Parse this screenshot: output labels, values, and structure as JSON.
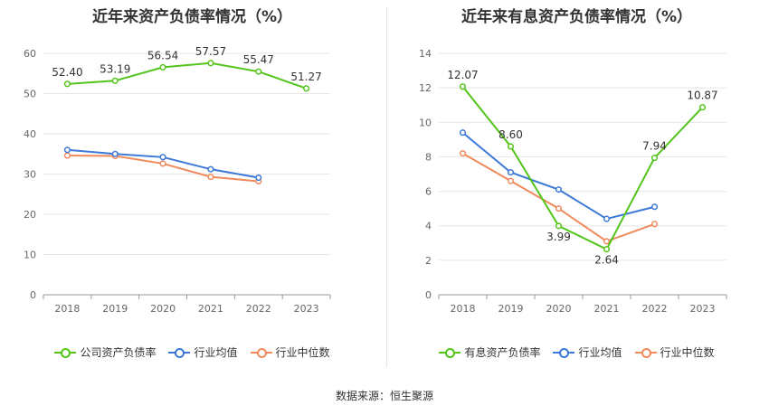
{
  "footer": {
    "source": "数据来源：恒生聚源"
  },
  "chart_data": [
    {
      "type": "line",
      "title": "近年来资产负债率情况（%）",
      "categories": [
        "2018",
        "2019",
        "2020",
        "2021",
        "2022",
        "2023"
      ],
      "ylim": [
        0,
        60
      ],
      "yticks": [
        0,
        10,
        20,
        30,
        40,
        50,
        60
      ],
      "grid": true,
      "legend_position": "bottom",
      "series": [
        {
          "name": "公司资产负债率",
          "color": "#52c41a",
          "values": [
            52.4,
            53.19,
            56.54,
            57.57,
            55.47,
            51.27
          ],
          "labels": [
            "52.40",
            "53.19",
            "56.54",
            "57.57",
            "55.47",
            "51.27"
          ]
        },
        {
          "name": "行业均值",
          "color": "#3b78d8",
          "values": [
            36.0,
            35.0,
            34.2,
            31.2,
            29.1,
            null
          ]
        },
        {
          "name": "行业中位数",
          "color": "#f08a5d",
          "values": [
            34.6,
            34.5,
            32.6,
            29.3,
            28.2,
            null
          ]
        }
      ]
    },
    {
      "type": "line",
      "title": "近年来有息资产负债率情况（%）",
      "categories": [
        "2018",
        "2019",
        "2020",
        "2021",
        "2022",
        "2023"
      ],
      "ylim": [
        0,
        14
      ],
      "yticks": [
        0,
        2,
        4,
        6,
        8,
        10,
        12,
        14
      ],
      "grid": true,
      "legend_position": "bottom",
      "series": [
        {
          "name": "有息资产负债率",
          "color": "#52c41a",
          "values": [
            12.07,
            8.6,
            3.99,
            2.64,
            7.94,
            10.87
          ],
          "labels": [
            "12.07",
            "8.60",
            "3.99",
            "2.64",
            "7.94",
            "10.87"
          ]
        },
        {
          "name": "行业均值",
          "color": "#3b78d8",
          "values": [
            9.4,
            7.1,
            6.1,
            4.4,
            5.1,
            null
          ]
        },
        {
          "name": "行业中位数",
          "color": "#f08a5d",
          "values": [
            8.2,
            6.6,
            5.0,
            3.1,
            4.1,
            null
          ]
        }
      ]
    }
  ]
}
